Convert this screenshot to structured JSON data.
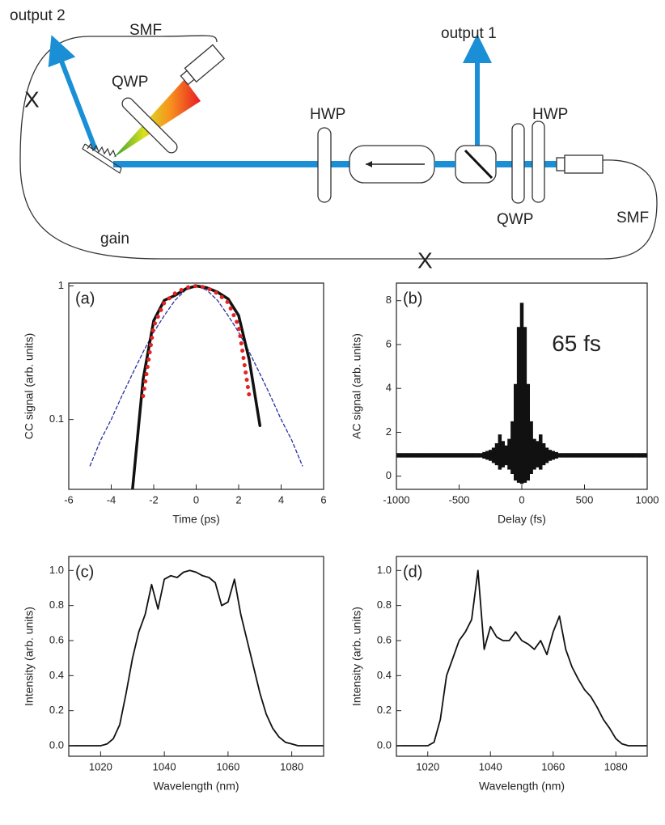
{
  "diagram": {
    "labels": [
      "output 2",
      "SMF",
      "QWP",
      "HWP",
      "output 1",
      "HWP",
      "QWP",
      "SMF",
      "gain",
      "X",
      "X"
    ]
  },
  "chart_data": [
    {
      "type": "line",
      "panel_label": "(a)",
      "xlabel": "Time (ps)",
      "ylabel": "CC signal (arb. units)",
      "log_y": true,
      "xlim": [
        -6,
        6
      ],
      "ylim": [
        0.03,
        1.05
      ],
      "xticks": [
        -6,
        -4,
        -2,
        0,
        2,
        4,
        6
      ],
      "yticks": [
        0.1,
        1
      ],
      "x": [
        -5.5,
        -5,
        -4.5,
        -4,
        -3.5,
        -3,
        -2.5,
        -2,
        -1.5,
        -1,
        -0.5,
        0,
        0.5,
        1,
        1.5,
        2,
        2.5,
        3,
        3.5,
        4,
        4.5,
        5,
        5.5
      ],
      "series": [
        {
          "color": "#2a2f9e",
          "style": "dashed",
          "values": [
            null,
            0.045,
            0.07,
            0.1,
            0.15,
            0.22,
            0.32,
            0.45,
            0.6,
            0.78,
            0.93,
            1,
            0.93,
            0.78,
            0.6,
            0.45,
            0.32,
            0.22,
            0.15,
            0.1,
            0.07,
            0.045,
            null
          ]
        },
        {
          "color": "#111111",
          "style": "solid",
          "values": [
            null,
            null,
            null,
            null,
            null,
            0.03,
            0.2,
            0.55,
            0.78,
            0.85,
            0.95,
            1,
            0.97,
            0.9,
            0.8,
            0.6,
            0.28,
            0.09,
            null,
            null,
            null,
            null,
            null
          ]
        },
        {
          "color": "#e52222",
          "style": "dotted",
          "values": [
            null,
            null,
            null,
            null,
            null,
            null,
            0.15,
            0.5,
            0.75,
            0.88,
            0.97,
            1,
            0.97,
            0.88,
            0.75,
            0.5,
            0.15,
            null,
            null,
            null,
            null,
            null,
            null
          ]
        }
      ]
    },
    {
      "type": "area",
      "panel_label": "(b)",
      "annotation": "65 fs",
      "xlabel": "Delay (fs)",
      "ylabel": "AC signal (arb. units)",
      "xlim": [
        -1000,
        1000
      ],
      "ylim": [
        -0.6,
        8.8
      ],
      "xticks": [
        -1000,
        -500,
        0,
        500,
        1000
      ],
      "yticks": [
        0,
        2,
        4,
        6,
        8
      ],
      "x": [
        -1000,
        -975,
        -950,
        -925,
        -900,
        -875,
        -850,
        -825,
        -800,
        -775,
        -750,
        -725,
        -700,
        -675,
        -650,
        -625,
        -600,
        -575,
        -550,
        -525,
        -500,
        -475,
        -450,
        -425,
        -400,
        -375,
        -350,
        -325,
        -300,
        -275,
        -250,
        -225,
        -200,
        -175,
        -150,
        -125,
        -100,
        -75,
        -50,
        -25,
        0,
        25,
        50,
        75,
        100,
        125,
        150,
        175,
        200,
        225,
        250,
        275,
        300,
        325,
        350,
        375,
        400,
        425,
        450,
        475,
        500,
        525,
        550,
        575,
        600,
        625,
        650,
        675,
        700,
        725,
        750,
        775,
        800,
        825,
        850,
        875,
        900,
        925,
        950,
        975,
        1000
      ],
      "series": [
        {
          "color": "#111111",
          "values": [
            1.05,
            1.05,
            1.05,
            1.05,
            1.05,
            1.05,
            1.05,
            1.05,
            1.05,
            1.05,
            1.05,
            1.05,
            1.05,
            1.05,
            1.05,
            1.05,
            1.05,
            1.05,
            1.05,
            1.05,
            1.05,
            1.05,
            1.05,
            1.05,
            1.05,
            1.05,
            1.05,
            1.05,
            1.1,
            1.15,
            1.2,
            1.3,
            1.5,
            1.9,
            1.6,
            1.4,
            1.7,
            2.5,
            4.2,
            6.8,
            7.9,
            6.8,
            4.2,
            2.5,
            1.7,
            1.6,
            1.9,
            1.5,
            1.3,
            1.2,
            1.15,
            1.1,
            1.05,
            1.05,
            1.05,
            1.05,
            1.05,
            1.05,
            1.05,
            1.05,
            1.05,
            1.05,
            1.05,
            1.05,
            1.05,
            1.05,
            1.05,
            1.05,
            1.05,
            1.05,
            1.05,
            1.05,
            1.05,
            1.05,
            1.05,
            1.05,
            1.05,
            1.05,
            1.05,
            1.05,
            1.05
          ]
        },
        {
          "color": "#111111",
          "values": [
            0.85,
            0.85,
            0.85,
            0.85,
            0.85,
            0.85,
            0.85,
            0.85,
            0.85,
            0.85,
            0.85,
            0.85,
            0.85,
            0.85,
            0.85,
            0.85,
            0.85,
            0.85,
            0.85,
            0.85,
            0.85,
            0.85,
            0.85,
            0.85,
            0.85,
            0.85,
            0.85,
            0.85,
            0.8,
            0.75,
            0.7,
            0.6,
            0.5,
            0.3,
            0.4,
            0.5,
            0.3,
            0.1,
            -0.2,
            -0.3,
            -0.35,
            -0.3,
            -0.2,
            0.1,
            0.3,
            0.4,
            0.3,
            0.5,
            0.6,
            0.7,
            0.75,
            0.8,
            0.85,
            0.85,
            0.85,
            0.85,
            0.85,
            0.85,
            0.85,
            0.85,
            0.85,
            0.85,
            0.85,
            0.85,
            0.85,
            0.85,
            0.85,
            0.85,
            0.85,
            0.85,
            0.85,
            0.85,
            0.85,
            0.85,
            0.85,
            0.85,
            0.85,
            0.85,
            0.85,
            0.85,
            0.85
          ]
        }
      ]
    },
    {
      "type": "line",
      "panel_label": "(c)",
      "xlabel": "Wavelength (nm)",
      "ylabel": "Intensity (arb. units)",
      "xlim": [
        1010,
        1090
      ],
      "ylim": [
        -0.06,
        1.08
      ],
      "xticks": [
        1020,
        1040,
        1060,
        1080
      ],
      "yticks": [
        {
          "value": 0,
          "label": "0.0"
        },
        0.2,
        0.4,
        0.6,
        0.8,
        {
          "value": 1,
          "label": "1.0"
        }
      ],
      "x": [
        1010,
        1012,
        1014,
        1016,
        1018,
        1020,
        1022,
        1024,
        1026,
        1028,
        1030,
        1032,
        1034,
        1036,
        1038,
        1040,
        1042,
        1044,
        1046,
        1048,
        1050,
        1052,
        1054,
        1056,
        1058,
        1060,
        1062,
        1064,
        1066,
        1068,
        1070,
        1072,
        1074,
        1076,
        1078,
        1080,
        1082,
        1084,
        1086,
        1088,
        1090
      ],
      "series": [
        {
          "color": "#111111",
          "style": "solid",
          "values": [
            0,
            0,
            0,
            0,
            0,
            0,
            0.01,
            0.04,
            0.12,
            0.3,
            0.5,
            0.65,
            0.75,
            0.92,
            0.78,
            0.95,
            0.97,
            0.96,
            0.99,
            1.0,
            0.99,
            0.97,
            0.96,
            0.93,
            0.8,
            0.82,
            0.95,
            0.75,
            0.6,
            0.45,
            0.3,
            0.18,
            0.1,
            0.05,
            0.02,
            0.01,
            0,
            0,
            0,
            0,
            0
          ]
        }
      ]
    },
    {
      "type": "line",
      "panel_label": "(d)",
      "xlabel": "Wavelength (nm)",
      "ylabel": "Intensity (arb. units)",
      "xlim": [
        1010,
        1090
      ],
      "ylim": [
        -0.06,
        1.08
      ],
      "xticks": [
        1020,
        1040,
        1060,
        1080
      ],
      "yticks": [
        {
          "value": 0,
          "label": "0.0"
        },
        0.2,
        0.4,
        0.6,
        0.8,
        {
          "value": 1,
          "label": "1.0"
        }
      ],
      "x": [
        1010,
        1012,
        1014,
        1016,
        1018,
        1020,
        1022,
        1024,
        1026,
        1028,
        1030,
        1032,
        1034,
        1036,
        1038,
        1040,
        1042,
        1044,
        1046,
        1048,
        1050,
        1052,
        1054,
        1056,
        1058,
        1060,
        1062,
        1064,
        1066,
        1068,
        1070,
        1072,
        1074,
        1076,
        1078,
        1080,
        1082,
        1084,
        1086,
        1088,
        1090
      ],
      "series": [
        {
          "color": "#111111",
          "style": "solid",
          "values": [
            0,
            0,
            0,
            0,
            0,
            0,
            0.02,
            0.15,
            0.4,
            0.5,
            0.6,
            0.65,
            0.72,
            1.0,
            0.55,
            0.68,
            0.62,
            0.6,
            0.6,
            0.65,
            0.6,
            0.58,
            0.55,
            0.6,
            0.52,
            0.65,
            0.74,
            0.55,
            0.45,
            0.38,
            0.32,
            0.28,
            0.22,
            0.15,
            0.1,
            0.04,
            0.01,
            0,
            0,
            0,
            0
          ]
        }
      ]
    }
  ]
}
